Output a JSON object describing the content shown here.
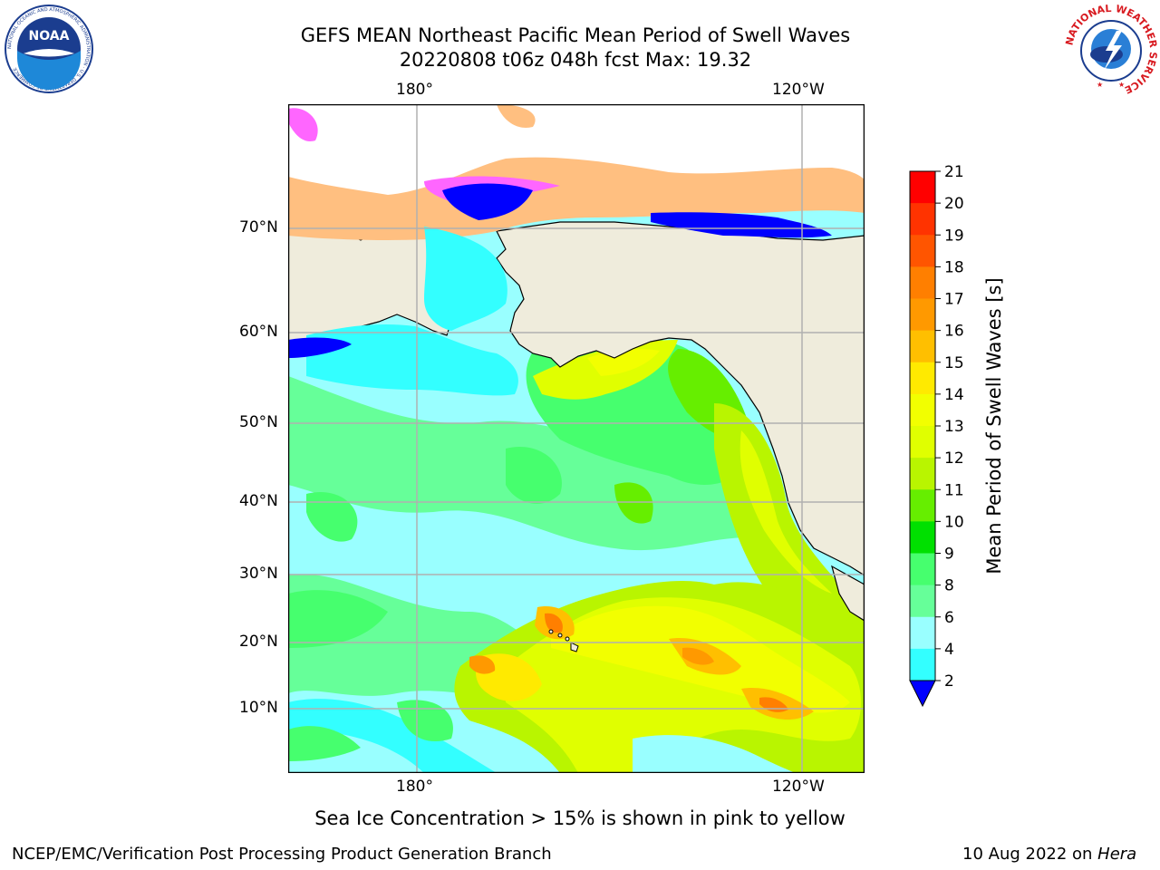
{
  "header": {
    "title_line1": "GEFS MEAN Northeast Pacific Mean Period of Swell Waves",
    "title_line2": "20220808 t06z 048h fcst   Max: 19.32"
  },
  "logos": {
    "left": {
      "text": "NOAA",
      "ring_text": "NATIONAL OCEANIC AND ATMOSPHERIC ADMINISTRATION · U.S. DEPARTMENT OF COMMERCE"
    },
    "right": {
      "ring_text": "NATIONAL WEATHER SERVICE"
    }
  },
  "map": {
    "lon_labels": [
      "180°",
      "120°W"
    ],
    "lat_labels": [
      "70°N",
      "60°N",
      "50°N",
      "40°N",
      "30°N",
      "20°N",
      "10°N"
    ],
    "land_color": "#efecdc",
    "grid_color": "#b0b0b0"
  },
  "colorbar": {
    "label": "Mean Period of Swell Waves [s]",
    "ticks": [
      "21",
      "20",
      "19",
      "18",
      "17",
      "16",
      "15",
      "14",
      "13",
      "12",
      "11",
      "10",
      "9",
      "8",
      "6",
      "4",
      "2"
    ],
    "colors": [
      "#ff0000",
      "#ff3300",
      "#ff5500",
      "#ff7f00",
      "#ff9900",
      "#ffbf00",
      "#ffea00",
      "#f2ff00",
      "#e0ff00",
      "#b9f500",
      "#66ee00",
      "#00e000",
      "#46ff6e",
      "#66ff99",
      "#99ffff",
      "#33ffff",
      "#00ffff",
      "#0077ff",
      "#0000ff"
    ]
  },
  "footer": {
    "note": "Sea Ice Concentration > 15% is shown in pink to yellow",
    "credit": "NCEP/EMC/Verification Post Processing Product Generation Branch",
    "date": "10 Aug 2022 on ",
    "machine": "Hera"
  }
}
